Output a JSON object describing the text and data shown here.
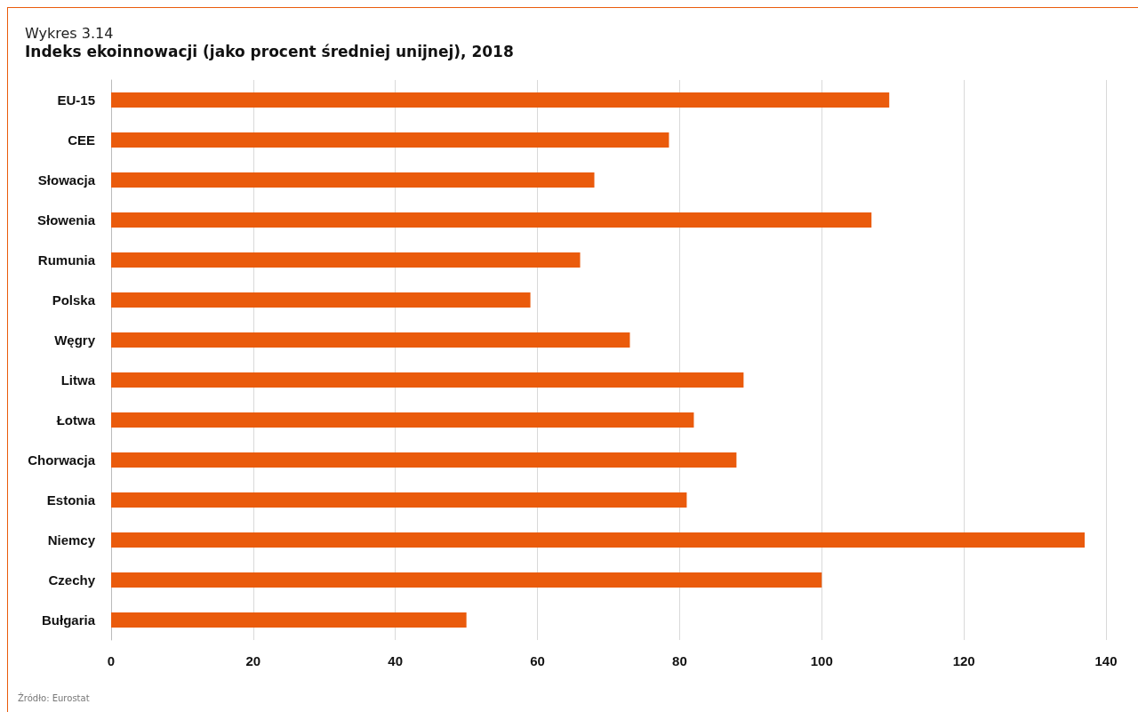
{
  "chart_data": {
    "type": "bar",
    "orientation": "horizontal",
    "subtitle": "Wykres 3.14",
    "title": "Indeks ekoinnowacji (jako procent średniej unijnej), 2018",
    "categories": [
      "EU-15",
      "CEE",
      "Słowacja",
      "Słowenia",
      "Rumunia",
      "Polska",
      "Węgry",
      "Litwa",
      "Łotwa",
      "Chorwacja",
      "Estonia",
      "Niemcy",
      "Czechy",
      "Bułgaria"
    ],
    "values": [
      109.5,
      78.5,
      68,
      107,
      66,
      59,
      73,
      89,
      82,
      88,
      81,
      137,
      100,
      50
    ],
    "color": "#ea5b0c",
    "xlim": [
      0,
      140
    ],
    "xticks": [
      0,
      20,
      40,
      60,
      80,
      100,
      120,
      140
    ],
    "grid": "x",
    "annotations": [
      "Źródło: Eurostat"
    ]
  }
}
